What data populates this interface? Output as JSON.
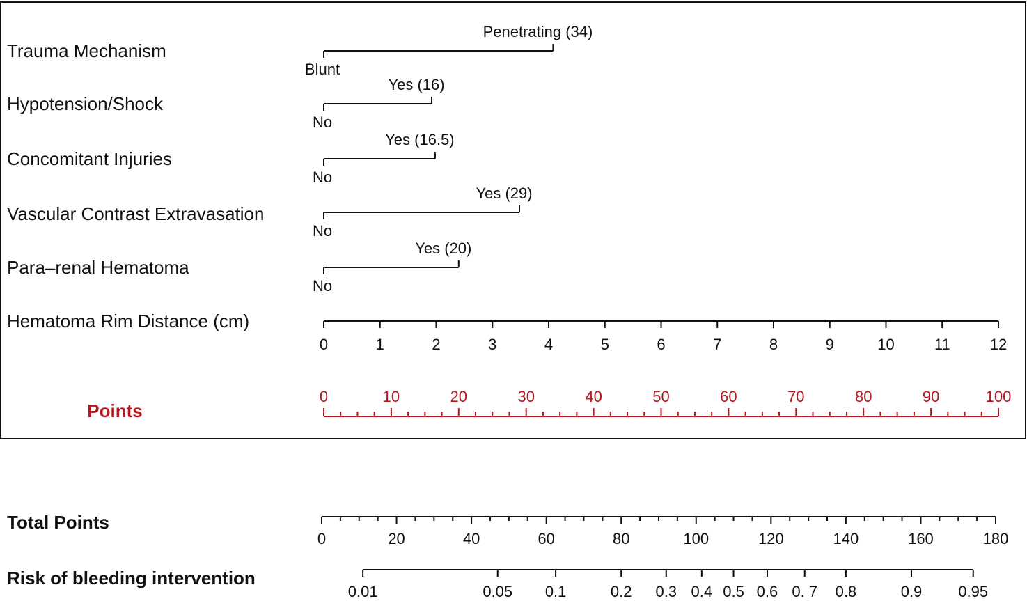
{
  "chart_data": {
    "type": "nomogram",
    "points_scale": {
      "title": "Points",
      "min": 0,
      "max": 100,
      "major_ticks": [
        0,
        10,
        20,
        30,
        40,
        50,
        60,
        70,
        80,
        90,
        100
      ],
      "minor_step": 2.5
    },
    "variables": [
      {
        "label": "Trauma Mechanism",
        "base_label": "Blunt",
        "end_label": "Penetrating (34)",
        "points": 34
      },
      {
        "label": "Hypotension/Shock",
        "base_label": "No",
        "end_label": "Yes (16)",
        "points": 16
      },
      {
        "label": "Concomitant Injuries",
        "base_label": "No",
        "end_label": "Yes (16.5)",
        "points": 16.5
      },
      {
        "label": "Vascular Contrast Extravasation",
        "base_label": "No",
        "end_label": "Yes (29)",
        "points": 29
      },
      {
        "label": "Para–renal Hematoma",
        "base_label": "No",
        "end_label": "Yes (20)",
        "points": 20
      }
    ],
    "continuous_variable": {
      "label": "Hematoma Rim Distance (cm)",
      "min": 0,
      "max": 12,
      "ticks": [
        "0",
        "1",
        "2",
        "3",
        "4",
        "5",
        "6",
        "7",
        "8",
        "9",
        "10",
        "11",
        "12"
      ]
    },
    "total_points": {
      "title": "Total Points",
      "min": 0,
      "max": 180,
      "major_ticks": [
        "0",
        "20",
        "40",
        "60",
        "80",
        "100",
        "120",
        "140",
        "160",
        "180"
      ],
      "minor_step": 5
    },
    "risk": {
      "title": "Risk of bleeding intervention",
      "ticks": [
        {
          "label": "0.01",
          "total_points": 11
        },
        {
          "label": "0.05",
          "total_points": 47
        },
        {
          "label": "0.1",
          "total_points": 62.5
        },
        {
          "label": "0.2",
          "total_points": 80
        },
        {
          "label": "0.3",
          "total_points": 92
        },
        {
          "label": "0.4",
          "total_points": 101.5
        },
        {
          "label": "0.5",
          "total_points": 110
        },
        {
          "label": "0.6",
          "total_points": 119
        },
        {
          "label": "0. 7",
          "total_points": 129
        },
        {
          "label": "0.8",
          "total_points": 140
        },
        {
          "label": "0.9",
          "total_points": 157.5
        },
        {
          "label": "0.95",
          "total_points": 174
        }
      ]
    }
  }
}
